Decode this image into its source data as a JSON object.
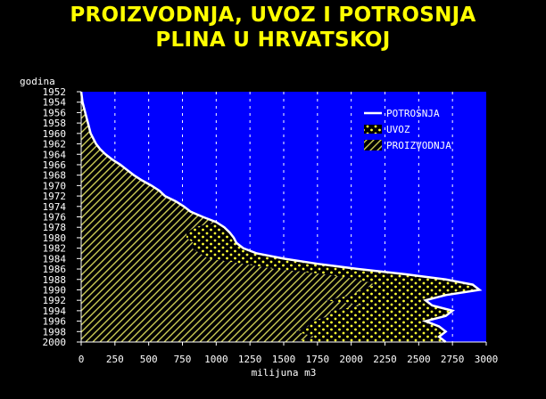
{
  "chart_data": {
    "type": "area",
    "orientation": "horizontal",
    "title_line1": "PROIZVODNJA, UVOZ I POTROSNJA",
    "title_line2": "PLINA U HRVATSKOJ",
    "xlabel": "milijuna m3",
    "ylabel": "godina",
    "xlim": [
      0,
      3000
    ],
    "x_ticks": [
      0,
      250,
      500,
      750,
      1000,
      1250,
      1500,
      1750,
      2000,
      2250,
      2500,
      2750,
      3000
    ],
    "years": [
      1952,
      1953,
      1954,
      1955,
      1956,
      1957,
      1958,
      1959,
      1960,
      1961,
      1962,
      1963,
      1964,
      1965,
      1966,
      1967,
      1968,
      1969,
      1970,
      1971,
      1972,
      1973,
      1974,
      1975,
      1976,
      1977,
      1978,
      1979,
      1980,
      1981,
      1982,
      1983,
      1984,
      1985,
      1986,
      1987,
      1988,
      1989,
      1990,
      1991,
      1992,
      1993,
      1994,
      1995,
      1996,
      1997,
      1998,
      1999,
      2000
    ],
    "year_tick_labels": [
      "1952",
      "1954",
      "1956",
      "1958",
      "1960",
      "1962",
      "1964",
      "1966",
      "1968",
      "1970",
      "1972",
      "1974",
      "1976",
      "1978",
      "1980",
      "1982",
      "1984",
      "1986",
      "1988",
      "1990",
      "1992",
      "1994",
      "1996",
      "1998",
      "2000"
    ],
    "grid": true,
    "grid_style": "dashed vertical",
    "legend_position": "top-right",
    "series": [
      {
        "name": "POTROSNJA",
        "style": "white line",
        "values": [
          0,
          5,
          10,
          20,
          30,
          40,
          50,
          60,
          70,
          90,
          110,
          140,
          180,
          230,
          290,
          340,
          390,
          450,
          520,
          580,
          620,
          700,
          760,
          810,
          900,
          1000,
          1060,
          1100,
          1130,
          1150,
          1200,
          1300,
          1500,
          1750,
          2050,
          2400,
          2700,
          2900,
          2950,
          2700,
          2550,
          2600,
          2750,
          2700,
          2550,
          2650,
          2700,
          2650,
          2700
        ]
      },
      {
        "name": "UVOZ",
        "style": "yellow dots on black",
        "values": [
          0,
          0,
          0,
          0,
          0,
          0,
          0,
          0,
          0,
          0,
          0,
          0,
          0,
          0,
          0,
          0,
          0,
          0,
          0,
          0,
          0,
          0,
          0,
          0,
          0,
          0,
          220,
          320,
          350,
          320,
          380,
          420,
          560,
          550,
          620,
          600,
          650,
          720,
          880,
          690,
          740,
          520,
          900,
          860,
          850,
          970,
          1110,
          920,
          1120
        ]
      },
      {
        "name": "PROIZVODNJA",
        "style": "yellow diagonal hatch",
        "values": [
          0,
          5,
          10,
          20,
          30,
          40,
          50,
          60,
          70,
          90,
          110,
          140,
          180,
          230,
          290,
          340,
          390,
          450,
          520,
          580,
          620,
          700,
          760,
          810,
          900,
          1000,
          840,
          780,
          780,
          830,
          820,
          880,
          940,
          1200,
          1430,
          1800,
          2050,
          2180,
          2070,
          2010,
          1810,
          2080,
          1850,
          1840,
          1700,
          1680,
          1590,
          1730,
          1580
        ]
      }
    ],
    "colors": {
      "background": "#000000",
      "plot_background": "#0000ff",
      "text": "#ffffff",
      "title": "#ffff00",
      "hatch": "#cccc55",
      "dots": "#ffff33",
      "consumption_line": "#ffffff"
    }
  }
}
